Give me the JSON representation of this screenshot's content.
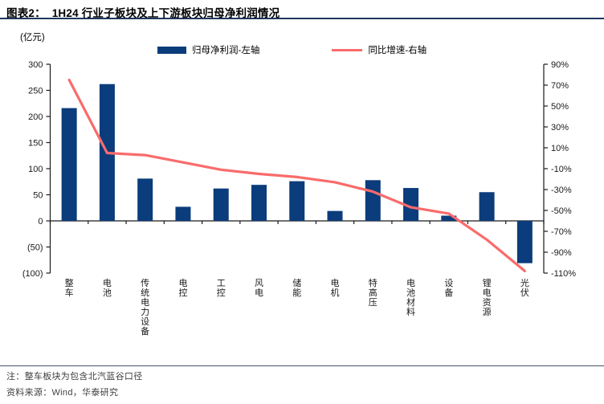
{
  "header": {
    "title": "图表2：  1H24 行业子板块及上下游板块归母净利润情况"
  },
  "chart_data": {
    "type": "bar+line",
    "title": "1H24 行业子板块及上下游板块归母净利润情况",
    "unit_label": "(亿元)",
    "categories": [
      "整车",
      "电池",
      "传统电力设备",
      "电控",
      "工控",
      "风电",
      "储能",
      "电机",
      "特高压",
      "电池材料",
      "设备",
      "锂电资源",
      "光伏"
    ],
    "series": [
      {
        "name": "归母净利润-左轴",
        "type": "bar",
        "axis": "left",
        "color": "#0B3C7C",
        "values": [
          216,
          262,
          81,
          27,
          62,
          69,
          76,
          19,
          78,
          63,
          10,
          55,
          -81
        ]
      },
      {
        "name": "同比增速-右轴",
        "type": "line",
        "axis": "right",
        "color": "#FA6B6B",
        "values": [
          75,
          5,
          3,
          -4,
          -11,
          -15,
          -18,
          -23,
          -32,
          -47,
          -53,
          -78,
          -108
        ]
      }
    ],
    "left_axis": {
      "min": -100,
      "max": 300,
      "step": 50,
      "negative_parentheses": true
    },
    "right_axis": {
      "min": -110,
      "max": 90,
      "step": 20,
      "suffix": "%"
    },
    "grid": "off",
    "legend_position": "top"
  },
  "footer": {
    "note": "注：整车板块为包含北汽蓝谷口径",
    "source": "资料来源：Wind，华泰研究"
  },
  "colors": {
    "bar": "#0B3C7C",
    "line": "#FA6B6B",
    "title_underline": "#1F3864",
    "note_separator": "#44546A",
    "axis": "#1a1a1a"
  }
}
